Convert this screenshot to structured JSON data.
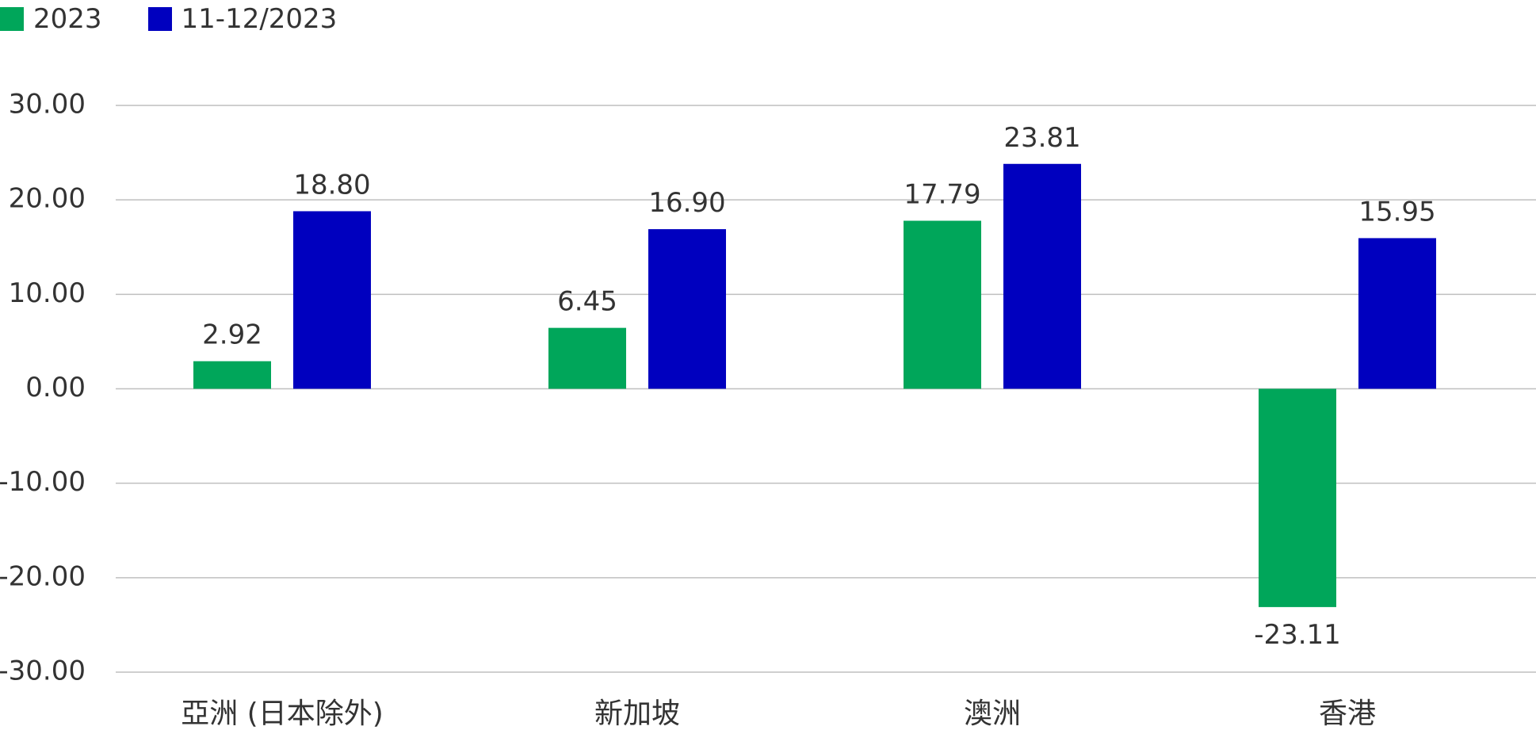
{
  "chart_data": {
    "type": "bar",
    "categories": [
      "亞洲 (日本除外)",
      "新加坡",
      "澳洲",
      "香港"
    ],
    "series": [
      {
        "name": "2023",
        "values": [
          2.92,
          6.45,
          17.79,
          -23.11
        ],
        "color": "#00a65a"
      },
      {
        "name": "11-12/2023",
        "values": [
          18.8,
          16.9,
          23.81,
          15.95
        ],
        "color": "#0000bf"
      }
    ],
    "ylim": [
      -30,
      30
    ],
    "yticks": [
      30,
      20,
      10,
      0,
      -10,
      -20,
      -30
    ],
    "ytick_labels": [
      "30.00",
      "20.00",
      "10.00",
      "0.00",
      "-10.00",
      "-20.00",
      "-30.00"
    ],
    "data_labels": [
      [
        "2.92",
        "6.45",
        "17.79",
        "-23.11"
      ],
      [
        "18.80",
        "16.90",
        "23.81",
        "15.95"
      ]
    ],
    "grid": true,
    "legend_position": "top-left",
    "title": "",
    "xlabel": "",
    "ylabel": ""
  }
}
